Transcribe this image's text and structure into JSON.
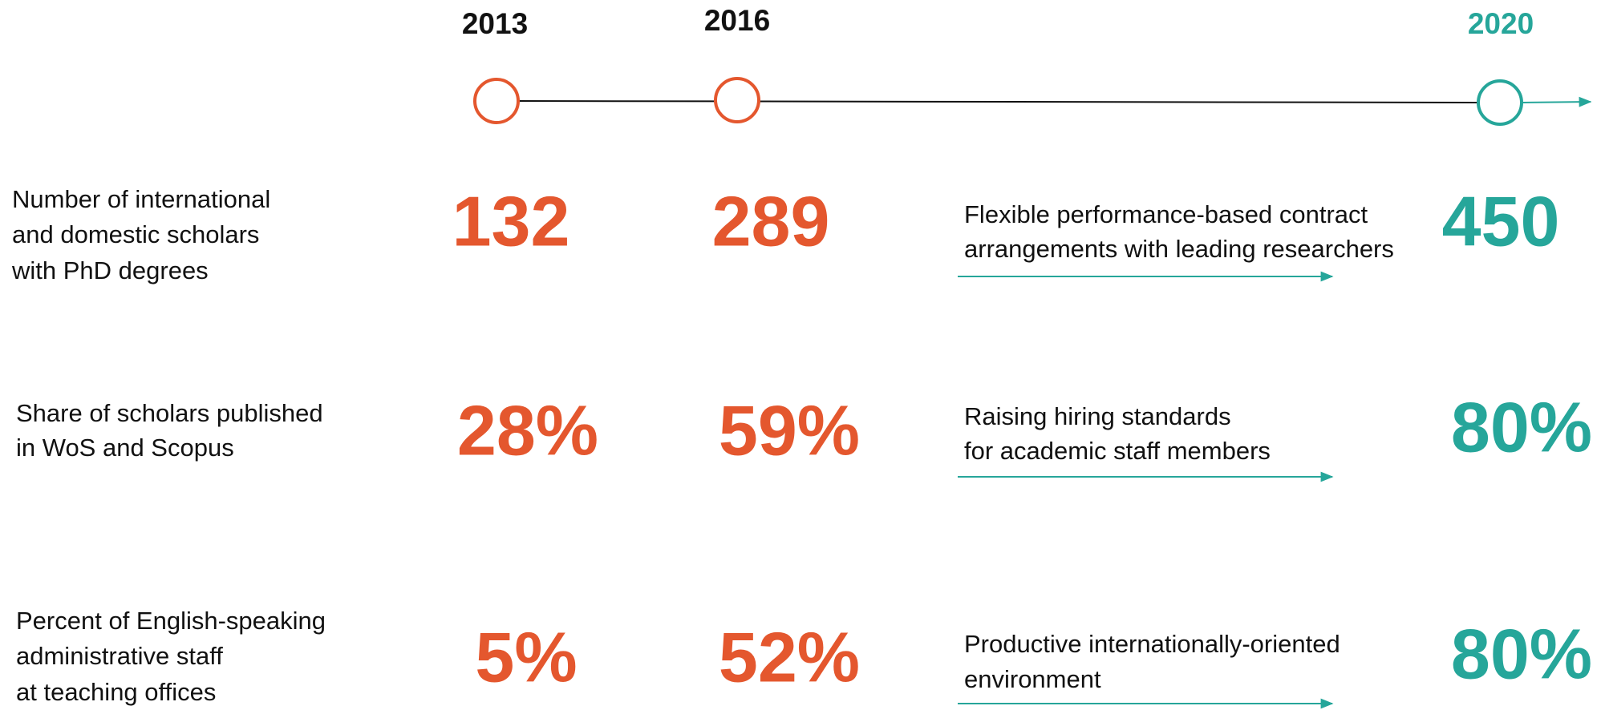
{
  "timeline": {
    "years": [
      "2013",
      "2016",
      "2020"
    ]
  },
  "rows": [
    {
      "label": [
        "Number of international",
        "and domestic scholars",
        "with PhD degrees"
      ],
      "values": [
        "132",
        "289"
      ],
      "measure": [
        "Flexible performance-based contract",
        "arrangements with leading researchers"
      ],
      "target": "450"
    },
    {
      "label": [
        "Share of scholars published",
        "in WoS and Scopus"
      ],
      "values": [
        "28%",
        "59%"
      ],
      "measure": [
        "Raising hiring standards",
        "for academic staff members"
      ],
      "target": "80%"
    },
    {
      "label": [
        "Percent of English-speaking",
        "administrative staff",
        "at teaching offices"
      ],
      "values": [
        "5%",
        "52%"
      ],
      "measure": [
        "Productive internationally-oriented",
        "environment"
      ],
      "target": "80%"
    }
  ]
}
